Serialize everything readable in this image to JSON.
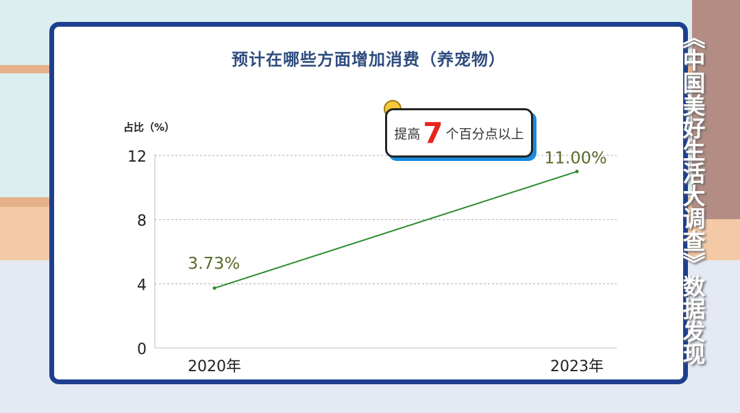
{
  "title": "预计在哪些方面增加消费（养宠物）",
  "side_caption": "《中国美好生活大调查》数据发现",
  "callout": {
    "prefix": "提高",
    "number": "7",
    "suffix": "个百分点以上"
  },
  "chart_data": {
    "type": "line",
    "title": "预计在哪些方面增加消费（养宠物）",
    "ylabel": "占比（%）",
    "xlabel": "",
    "categories": [
      "2020年",
      "2023年"
    ],
    "series": [
      {
        "values": [
          3.73,
          11.0
        ],
        "color": "#2e8b2e"
      }
    ],
    "data_labels": [
      "3.73%",
      "11.00%"
    ],
    "ylim": [
      0,
      12
    ],
    "yticks": [
      0,
      4,
      8,
      12
    ],
    "ytick_labels": [
      "0",
      "4",
      "8",
      "12"
    ],
    "grid": true,
    "label_color": "#5a6b2a"
  }
}
